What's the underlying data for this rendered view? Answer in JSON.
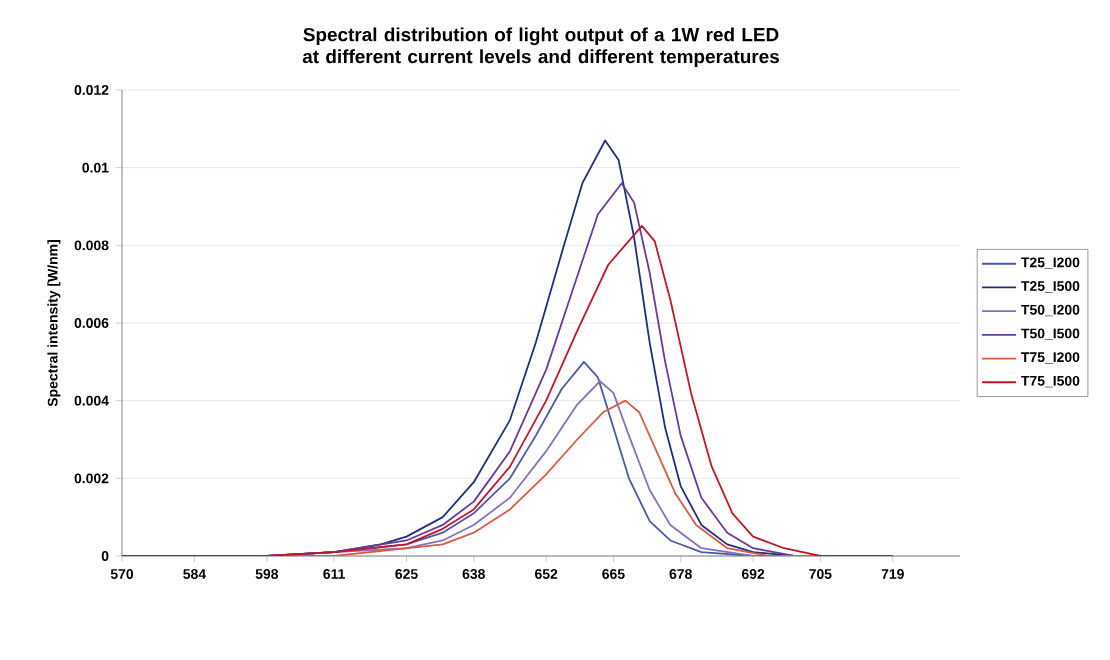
{
  "chart_data": {
    "type": "line",
    "title": "Spectral distribution of light output of a 1W red LED at different current levels and different temperatures",
    "ylabel": "Spectral intensity [W/nm]",
    "xlim": [
      570,
      732
    ],
    "xticks": [
      570,
      584,
      598,
      611,
      625,
      638,
      652,
      665,
      678,
      692,
      705,
      719
    ],
    "ylim": [
      0,
      0.012
    ],
    "yticks": [
      0,
      0.002,
      0.004,
      0.006,
      0.008,
      0.01,
      0.012
    ],
    "grid": "y",
    "legend": "right",
    "marker": "none",
    "line_style": "solid",
    "series": [
      {
        "name": "T25_I200",
        "color": "#4a5aa8",
        "x": [
          570,
          598,
          611,
          625,
          632,
          638,
          645,
          650,
          655,
          659.3,
          662,
          665,
          668,
          672,
          676,
          682,
          692,
          705,
          719
        ],
        "values": [
          0,
          0,
          0.0001,
          0.0003,
          0.0006,
          0.0011,
          0.002,
          0.0031,
          0.0043,
          0.005,
          0.0046,
          0.0033,
          0.002,
          0.0009,
          0.0004,
          0.0001,
          0,
          0,
          0
        ]
      },
      {
        "name": "T25_I500",
        "color": "#1f2f80",
        "x": [
          570,
          598,
          611,
          620,
          625,
          632,
          638,
          645,
          650,
          655,
          659,
          663.4,
          666,
          669,
          672,
          675,
          678,
          682,
          687,
          692,
          700,
          705,
          719
        ],
        "values": [
          0,
          0,
          0.0001,
          0.0003,
          0.0005,
          0.001,
          0.0019,
          0.0035,
          0.0055,
          0.0078,
          0.0096,
          0.0107,
          0.0102,
          0.0082,
          0.0055,
          0.0033,
          0.0018,
          0.0008,
          0.0003,
          0.0001,
          0,
          0,
          0
        ]
      },
      {
        "name": "T50_I200",
        "color": "#8a70b8",
        "x": [
          570,
          598,
          611,
          625,
          632,
          638,
          645,
          652,
          658,
          662.4,
          665,
          668,
          672,
          676,
          682,
          692,
          705,
          719
        ],
        "values": [
          0,
          0,
          0.0001,
          0.0002,
          0.0004,
          0.0008,
          0.0015,
          0.0027,
          0.0039,
          0.0045,
          0.0042,
          0.0031,
          0.0017,
          0.0008,
          0.0002,
          0,
          0,
          0
        ]
      },
      {
        "name": "T50_I500",
        "color": "#6a3a98",
        "x": [
          570,
          598,
          611,
          625,
          632,
          638,
          645,
          652,
          657,
          662,
          666.6,
          669,
          672,
          675,
          678,
          682,
          687,
          692,
          700,
          705,
          719
        ],
        "values": [
          0,
          0,
          0.0001,
          0.0004,
          0.0008,
          0.0014,
          0.0027,
          0.0048,
          0.0068,
          0.0088,
          0.0096,
          0.0091,
          0.0073,
          0.005,
          0.0031,
          0.0015,
          0.0006,
          0.0002,
          0,
          0,
          0
        ]
      },
      {
        "name": "T75_I200",
        "color": "#d85a48",
        "x": [
          570,
          598,
          611,
          625,
          632,
          638,
          645,
          652,
          658,
          663,
          667.3,
          670,
          673,
          677,
          681,
          687,
          695,
          705,
          719
        ],
        "values": [
          0,
          0,
          0,
          0.0002,
          0.0003,
          0.0006,
          0.0012,
          0.0021,
          0.003,
          0.0037,
          0.004,
          0.0037,
          0.0028,
          0.0016,
          0.0008,
          0.0002,
          0,
          0,
          0
        ]
      },
      {
        "name": "T75_I500",
        "color": "#c01828",
        "x": [
          570,
          598,
          611,
          625,
          632,
          638,
          645,
          652,
          658,
          664,
          670.5,
          673,
          676,
          680,
          684,
          688,
          692,
          698,
          705,
          719
        ],
        "values": [
          0,
          0,
          0.0001,
          0.0003,
          0.0007,
          0.0012,
          0.0023,
          0.004,
          0.0058,
          0.0075,
          0.0085,
          0.0081,
          0.0066,
          0.0042,
          0.0023,
          0.0011,
          0.0005,
          0.0002,
          0,
          0
        ]
      }
    ]
  }
}
